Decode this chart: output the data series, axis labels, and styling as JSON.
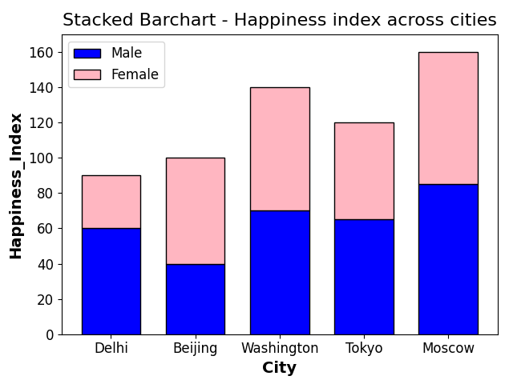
{
  "title": "Stacked Barchart - Happiness index across cities",
  "xlabel": "City",
  "ylabel": "Happiness_Index",
  "categories": [
    "Delhi",
    "Beijing",
    "Washington",
    "Tokyo",
    "Moscow"
  ],
  "male_values": [
    60,
    40,
    70,
    65,
    85
  ],
  "female_values": [
    30,
    60,
    70,
    55,
    75
  ],
  "male_color": "blue",
  "female_color": "lightpink",
  "male_label": "Male",
  "female_label": "Female",
  "ylim": [
    0,
    170
  ],
  "title_fontsize": 16,
  "axis_label_fontsize": 14,
  "tick_fontsize": 12,
  "legend_fontsize": 12,
  "bar_edgecolor": "black",
  "bar_width": 0.7
}
